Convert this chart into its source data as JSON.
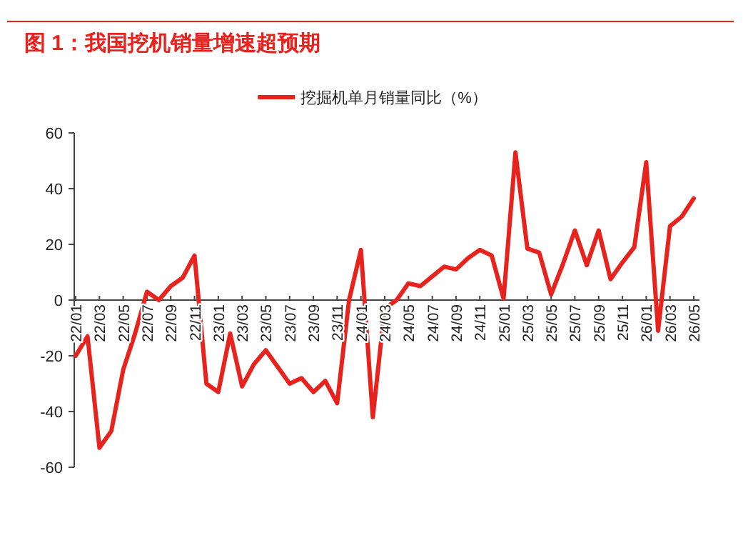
{
  "chart_data": {
    "type": "line",
    "title": "图 1：我国挖机销量增速超预期",
    "categories": [
      "22/01",
      null,
      "22/03",
      null,
      "22/05",
      null,
      "22/07",
      null,
      "22/09",
      null,
      "22/11",
      null,
      "23/01",
      null,
      "23/03",
      null,
      "23/05",
      null,
      "23/07",
      null,
      "23/09",
      null,
      "23/11",
      null,
      "24/01",
      null,
      "24/03",
      null,
      "24/05",
      null,
      "24/07",
      null,
      "24/09",
      null,
      "24/11",
      null,
      "25/01",
      null,
      "25/03",
      null,
      "25/05",
      null,
      "25/07",
      null,
      "25/09",
      null,
      "25/11",
      null,
      "26/01",
      null,
      "26/03",
      null,
      "26/05"
    ],
    "series": [
      {
        "name": "挖掘机单月销量同比（%）",
        "color": "#e8221c",
        "values": [
          -20,
          -13,
          -53,
          -47,
          -25,
          -12,
          3,
          0,
          5,
          8,
          16,
          -30,
          -33,
          -12,
          -31,
          -23,
          -18,
          -24,
          -30,
          -28,
          -33,
          -29,
          -37,
          0,
          18,
          -42,
          -3,
          0,
          6,
          5,
          8.5,
          12,
          11,
          15,
          18,
          16,
          0.5,
          53,
          18.5,
          17,
          2,
          13,
          25,
          12.5,
          25,
          7.5,
          13.5,
          19,
          49.5,
          -11,
          26.5,
          30,
          36.5
        ]
      }
    ],
    "ylim": [
      -60,
      60
    ],
    "yticks": [
      -60,
      -40,
      -20,
      0,
      20,
      40,
      60
    ],
    "legend": "top",
    "grid": false,
    "marker": "none",
    "line_style": "solid"
  }
}
